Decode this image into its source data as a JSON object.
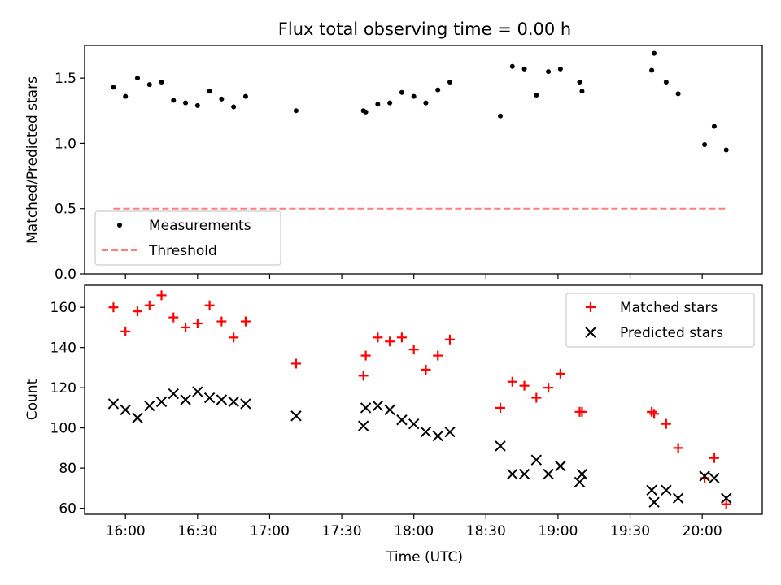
{
  "figure": {
    "title": "Flux total observing time = 0.00 h",
    "xlabel": "Time (UTC)",
    "x_tick_labels": [
      "16:00",
      "16:30",
      "17:00",
      "17:30",
      "18:00",
      "18:30",
      "19:00",
      "19:30",
      "20:00"
    ]
  },
  "chart_data": [
    {
      "type": "scatter",
      "ylabel": "Matched/Predicted stars",
      "ylim": [
        0,
        1.75
      ],
      "y_ticks": [
        0.0,
        0.5,
        1.0,
        1.5
      ],
      "xlim": [
        "15:43",
        "20:25"
      ],
      "legend": {
        "placement": "lower-left",
        "entries": [
          "Measurements",
          "Threshold"
        ]
      },
      "colors": {
        "measurements": "#000000",
        "threshold": "#ff7f7f"
      },
      "series": [
        {
          "name": "Measurements",
          "marker": "dot",
          "x": [
            "15:55",
            "16:00",
            "16:05",
            "16:10",
            "16:15",
            "16:20",
            "16:25",
            "16:30",
            "16:35",
            "16:40",
            "16:45",
            "16:50",
            "17:11",
            "17:39",
            "17:40",
            "17:45",
            "17:50",
            "17:55",
            "18:00",
            "18:05",
            "18:10",
            "18:15",
            "18:36",
            "18:41",
            "18:46",
            "18:51",
            "18:56",
            "19:01",
            "19:09",
            "19:10",
            "19:39",
            "19:40",
            "19:45",
            "19:50",
            "20:01",
            "20:05",
            "20:10"
          ],
          "y": [
            1.43,
            1.36,
            1.5,
            1.45,
            1.47,
            1.33,
            1.31,
            1.29,
            1.4,
            1.34,
            1.28,
            1.36,
            1.25,
            1.25,
            1.24,
            1.3,
            1.31,
            1.39,
            1.36,
            1.31,
            1.41,
            1.47,
            1.21,
            1.59,
            1.57,
            1.37,
            1.55,
            1.57,
            1.47,
            1.4,
            1.56,
            1.69,
            1.47,
            1.38,
            0.99,
            1.13,
            0.95
          ]
        },
        {
          "name": "Threshold",
          "marker": "dashed-line",
          "x": [
            "15:55",
            "20:10"
          ],
          "y": [
            0.5,
            0.5
          ]
        }
      ]
    },
    {
      "type": "scatter",
      "ylabel": "Count",
      "ylim": [
        57,
        171
      ],
      "y_ticks": [
        60,
        80,
        100,
        120,
        140,
        160
      ],
      "xlim": [
        "15:43",
        "20:25"
      ],
      "legend": {
        "placement": "top-right",
        "entries": [
          "Matched stars",
          "Predicted stars"
        ]
      },
      "colors": {
        "matched": "#ff0000",
        "predicted": "#000000"
      },
      "series": [
        {
          "name": "Matched stars",
          "marker": "plus",
          "x": [
            "15:55",
            "16:00",
            "16:05",
            "16:10",
            "16:15",
            "16:20",
            "16:25",
            "16:30",
            "16:35",
            "16:40",
            "16:45",
            "16:50",
            "17:11",
            "17:39",
            "17:40",
            "17:45",
            "17:50",
            "17:55",
            "18:00",
            "18:05",
            "18:10",
            "18:15",
            "18:36",
            "18:41",
            "18:46",
            "18:51",
            "18:56",
            "19:01",
            "19:09",
            "19:10",
            "19:39",
            "19:40",
            "19:45",
            "19:50",
            "20:01",
            "20:05",
            "20:10"
          ],
          "y": [
            160,
            148,
            158,
            161,
            166,
            155,
            150,
            152,
            161,
            153,
            145,
            153,
            132,
            126,
            136,
            145,
            143,
            145,
            139,
            129,
            136,
            144,
            110,
            123,
            121,
            115,
            120,
            127,
            108,
            108,
            108,
            107,
            102,
            90,
            75,
            85,
            62
          ]
        },
        {
          "name": "Predicted stars",
          "marker": "x",
          "x": [
            "15:55",
            "16:00",
            "16:05",
            "16:10",
            "16:15",
            "16:20",
            "16:25",
            "16:30",
            "16:35",
            "16:40",
            "16:45",
            "16:50",
            "17:11",
            "17:39",
            "17:40",
            "17:45",
            "17:50",
            "17:55",
            "18:00",
            "18:05",
            "18:10",
            "18:15",
            "18:36",
            "18:41",
            "18:46",
            "18:51",
            "18:56",
            "19:01",
            "19:09",
            "19:10",
            "19:39",
            "19:40",
            "19:45",
            "19:50",
            "20:01",
            "20:05",
            "20:10"
          ],
          "y": [
            112,
            109,
            105,
            111,
            113,
            117,
            114,
            118,
            115,
            114,
            113,
            112,
            106,
            101,
            110,
            111,
            109,
            104,
            102,
            98,
            96,
            98,
            91,
            77,
            77,
            84,
            77,
            81,
            73,
            77,
            69,
            63,
            69,
            65,
            76,
            75,
            65
          ]
        }
      ]
    }
  ]
}
